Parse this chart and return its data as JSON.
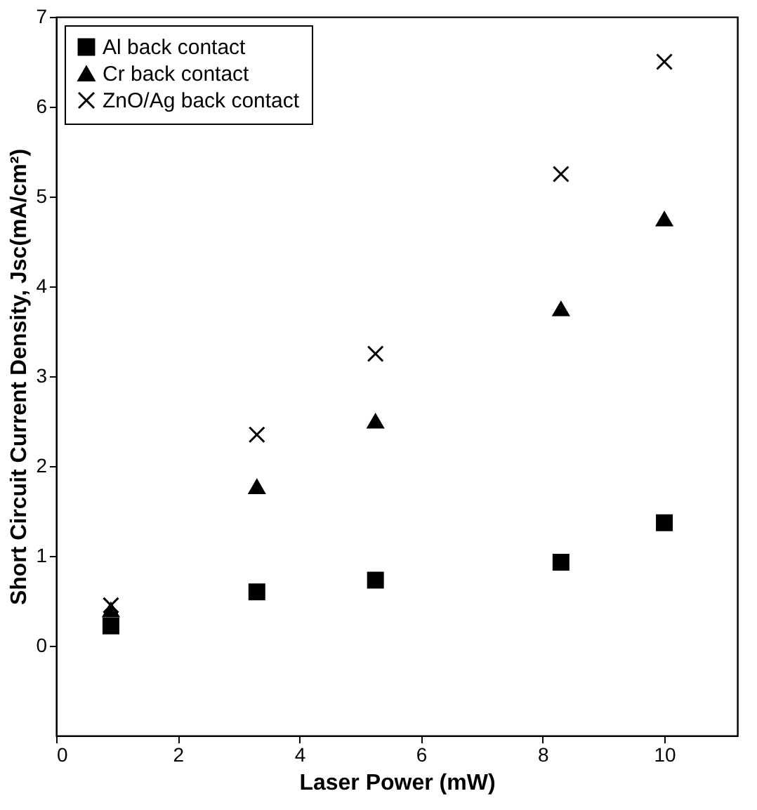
{
  "chart_data": {
    "type": "scatter",
    "xlabel": "Laser Power (mW)",
    "ylabel": "Short Circuit Current Density, Jsc(mA/cm²)",
    "x": [
      0.9,
      3.3,
      5.25,
      8.3,
      10
    ],
    "series": [
      {
        "name": "Al back contact",
        "color": "#000000",
        "marker": "square",
        "values": [
          0.22,
          0.6,
          0.73,
          0.93,
          1.37
        ]
      },
      {
        "name": "Cr back contact",
        "color": "#000000",
        "marker": "triangle",
        "values": [
          0.4,
          1.77,
          2.5,
          3.75,
          4.75
        ]
      },
      {
        "name": "ZnO/Ag back contact",
        "color": "#000000",
        "marker": "cross",
        "values": [
          0.45,
          2.35,
          3.25,
          5.25,
          6.5
        ]
      }
    ],
    "xlim": [
      0,
      11.2
    ],
    "ylim": [
      -1,
      7
    ],
    "xticks": [
      0,
      2,
      4,
      6,
      8,
      10
    ],
    "yticks": [
      0,
      1,
      2,
      3,
      4,
      5,
      6,
      7
    ],
    "legend": "top left",
    "grid": false
  }
}
